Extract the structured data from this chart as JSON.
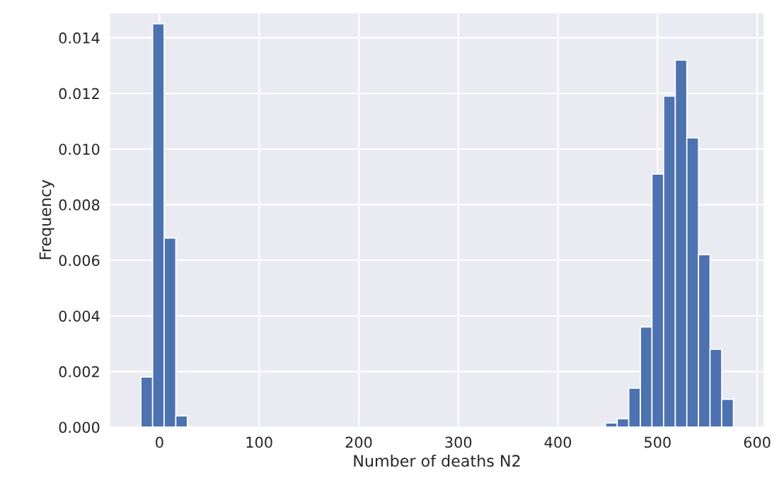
{
  "chart_data": {
    "type": "histogram",
    "xlabel": "Number of deaths N2",
    "ylabel": "Frequency",
    "bins": [
      -18.6,
      -6.9,
      4.7,
      16.4,
      28.0,
      39.7,
      51.4,
      63.0,
      74.7,
      86.3,
      98.0,
      109.7,
      121.3,
      133.0,
      144.6,
      156.3,
      168.0,
      179.6,
      191.3,
      202.9,
      214.6,
      226.3,
      237.9,
      249.6,
      261.2,
      272.9,
      284.6,
      296.2,
      307.9,
      319.5,
      331.2,
      342.9,
      354.5,
      366.2,
      377.8,
      389.5,
      401.2,
      412.8,
      424.5,
      436.1,
      447.8,
      459.5,
      471.1,
      482.8,
      494.4,
      506.1,
      517.8,
      529.4,
      541.1,
      552.7,
      564.4,
      576.1
    ],
    "values": [
      0.0018,
      0.0145,
      0.0068,
      0.0004,
      0,
      0,
      0,
      0,
      0,
      0,
      0,
      0,
      0,
      0,
      0,
      0,
      0,
      0,
      0,
      0,
      0,
      0,
      0,
      0,
      0,
      0,
      0,
      0,
      0,
      0,
      0,
      0,
      0,
      0,
      0,
      0,
      0,
      0,
      0,
      0,
      0.00015,
      0.0003,
      0.0014,
      0.0036,
      0.0091,
      0.0119,
      0.0132,
      0.0104,
      0.0062,
      0.0028,
      0.001
    ],
    "color": "#4c72b0",
    "xlim": [
      -50,
      607
    ],
    "ylim": [
      0,
      0.0149
    ],
    "xticks": [
      0,
      100,
      200,
      300,
      400,
      500,
      600
    ],
    "yticks": [
      {
        "value": 0,
        "label": "0.000"
      },
      {
        "value": 0.002,
        "label": "0.002"
      },
      {
        "value": 0.004,
        "label": "0.004"
      },
      {
        "value": 0.006,
        "label": "0.006"
      },
      {
        "value": 0.008,
        "label": "0.008"
      },
      {
        "value": 0.01,
        "label": "0.010"
      },
      {
        "value": 0.012,
        "label": "0.012"
      },
      {
        "value": 0.014,
        "label": "0.014"
      }
    ],
    "grid": true
  }
}
